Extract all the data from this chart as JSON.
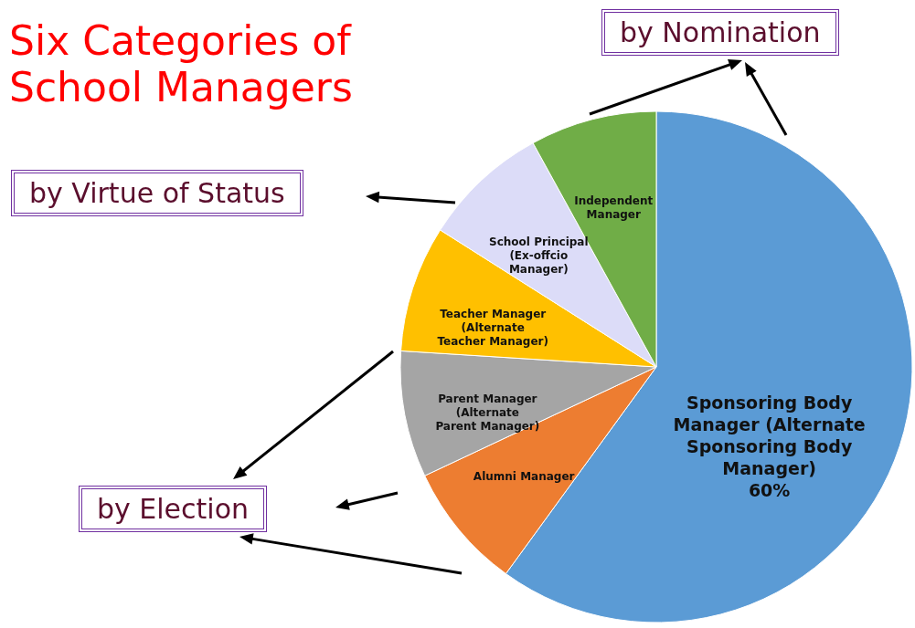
{
  "chart_data": {
    "type": "pie",
    "title": "Six Categories of School Managers",
    "categories": [
      "Sponsoring Body Manager (Alternate Sponsoring Body Manager)",
      "Alumni Manager",
      "Parent Manager (Alternate Parent Manager)",
      "Teacher Manager (Alternate Teacher Manager)",
      "School Principal (Ex-offcio Manager)",
      "Independent Manager"
    ],
    "values": [
      60,
      8,
      8,
      8,
      8,
      8
    ],
    "value_labels": [
      "60%",
      null,
      null,
      null,
      null,
      null
    ],
    "colors": [
      "#5b9bd5",
      "#ed7d31",
      "#a5a5a5",
      "#ffc000",
      "#dcdcf8",
      "#70ad47"
    ],
    "annotations": [
      "by Nomination",
      "by Virtue of Status",
      "by Election"
    ]
  }
}
